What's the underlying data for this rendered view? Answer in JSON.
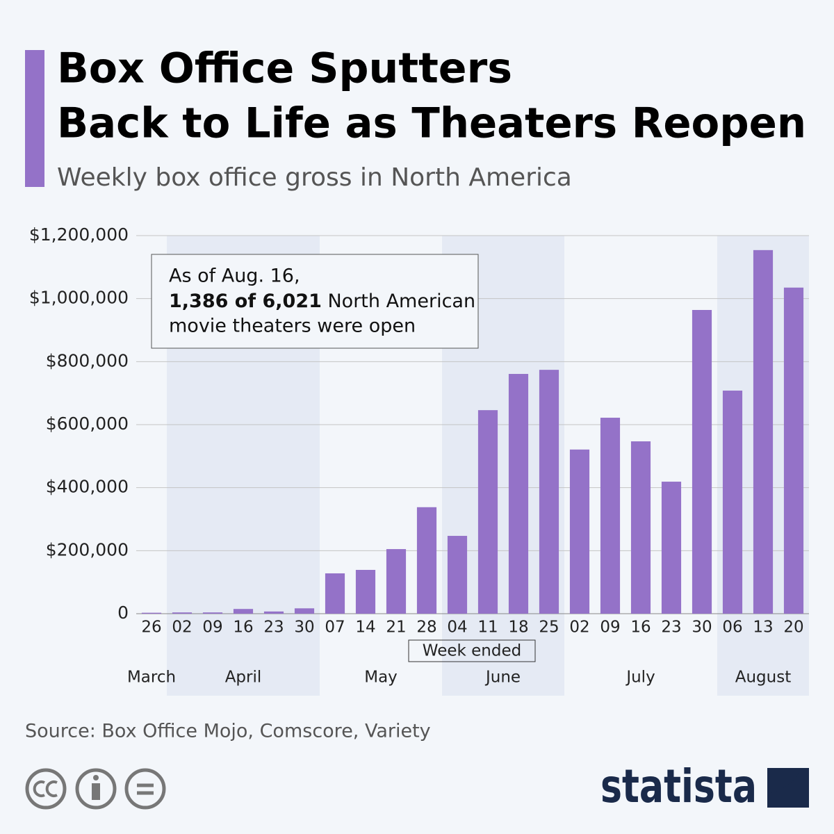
{
  "chart_data": {
    "type": "bar",
    "title": [
      "Box Office Sputters",
      "Back to Life as Theaters Reopen"
    ],
    "subtitle": "Weekly box office gross in North America",
    "x_label": "Week ended",
    "categories": [
      "26",
      "02",
      "09",
      "16",
      "23",
      "30",
      "07",
      "14",
      "21",
      "28",
      "04",
      "11",
      "18",
      "25",
      "02",
      "09",
      "16",
      "23",
      "30",
      "06",
      "13",
      "20"
    ],
    "category_months": [
      "March",
      "April",
      "April",
      "April",
      "April",
      "April",
      "May",
      "May",
      "May",
      "May",
      "June",
      "June",
      "June",
      "June",
      "July",
      "July",
      "July",
      "July",
      "July",
      "August",
      "August",
      "August"
    ],
    "values": [
      3000,
      4000,
      4000,
      15000,
      7000,
      17000,
      128000,
      139000,
      205000,
      338000,
      247000,
      646000,
      761000,
      774000,
      521000,
      622000,
      547000,
      419000,
      964000,
      708000,
      1154000,
      1035000
    ],
    "color": "#9472c8",
    "ylim": [
      0,
      1200000
    ],
    "yticks": [
      0,
      {
        "value": 200000,
        "label": "$200,000"
      },
      {
        "value": 400000,
        "label": "$400,000"
      },
      {
        "value": 600000,
        "label": "$600,000"
      },
      {
        "value": 800000,
        "label": "$800,000"
      },
      {
        "value": 1000000,
        "label": "$1,000,000"
      },
      {
        "value": 1200000,
        "label": "$1,200,000"
      }
    ],
    "grid": true,
    "annotation": {
      "line1": "As of Aug. 16,",
      "bold": "1,386 of 6,021",
      "line2_rest": " North American",
      "line3": "movie theaters were open"
    },
    "source": "Source: Box Office Mojo, Comscore, Variety",
    "brand": "statista"
  }
}
